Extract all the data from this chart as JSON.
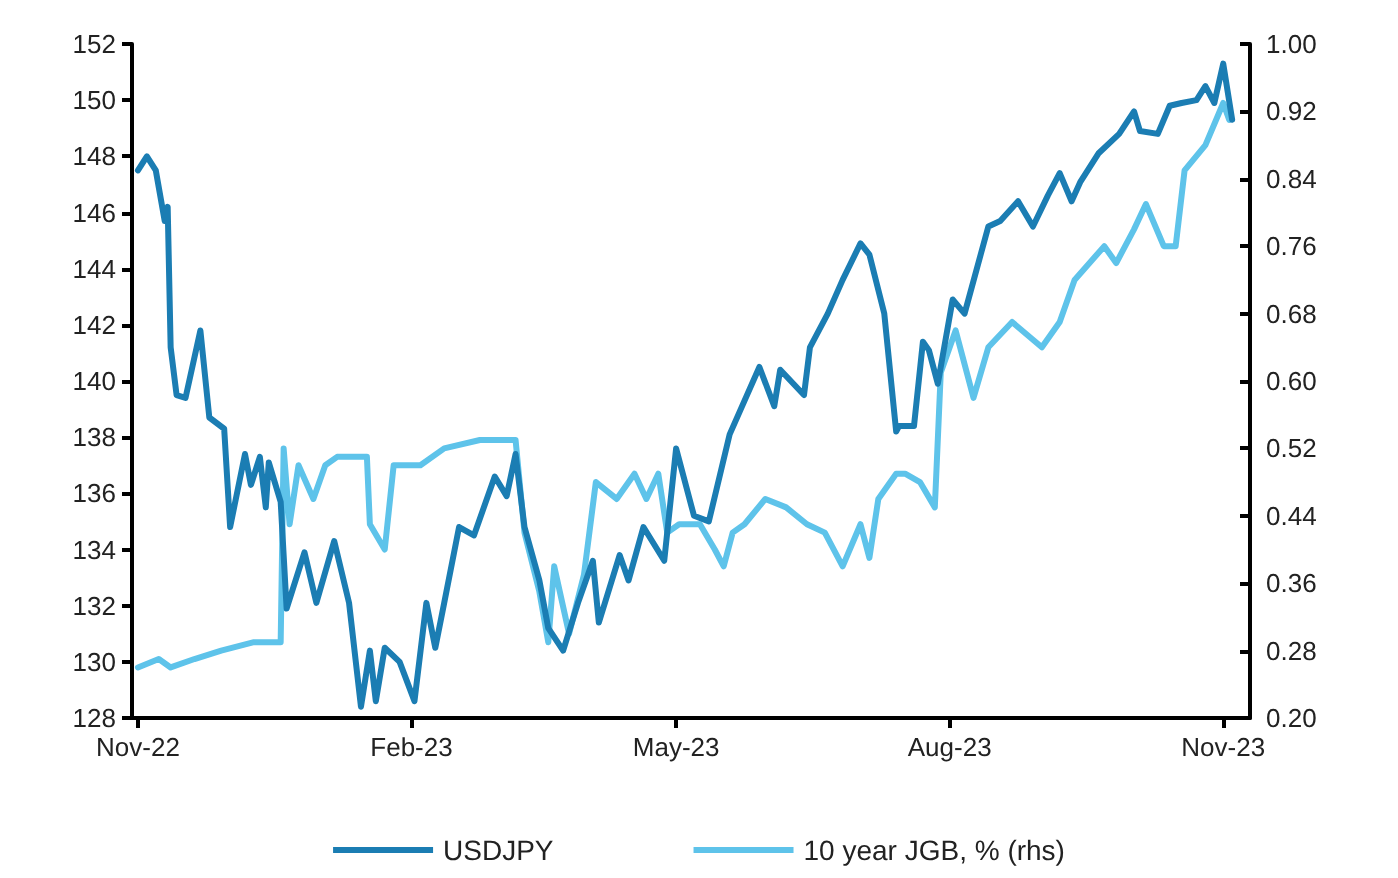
{
  "chart_data": {
    "type": "line",
    "legend": "bottom",
    "grid": false,
    "marker": "none",
    "line_style": "solid",
    "xlim": [
      "2022-10-30",
      "2023-11-10"
    ],
    "xticks": [
      {
        "value": "2022-11-01",
        "label": "Nov-22"
      },
      {
        "value": "2023-02-01",
        "label": "Feb-23"
      },
      {
        "value": "2023-05-01",
        "label": "May-23"
      },
      {
        "value": "2023-08-01",
        "label": "Aug-23"
      },
      {
        "value": "2023-11-01",
        "label": "Nov-23"
      }
    ],
    "ylim": [
      128,
      152
    ],
    "yticks": [
      128,
      130,
      132,
      134,
      136,
      138,
      140,
      142,
      144,
      146,
      148,
      150,
      152
    ],
    "y2lim": [
      0.2,
      1.0
    ],
    "y2ticks": [
      {
        "value": 0.2,
        "label": "0.20"
      },
      {
        "value": 0.28,
        "label": "0.28"
      },
      {
        "value": 0.36,
        "label": "0.36"
      },
      {
        "value": 0.44,
        "label": "0.44"
      },
      {
        "value": 0.52,
        "label": "0.52"
      },
      {
        "value": 0.6,
        "label": "0.60"
      },
      {
        "value": 0.68,
        "label": "0.68"
      },
      {
        "value": 0.76,
        "label": "0.76"
      },
      {
        "value": 0.84,
        "label": "0.84"
      },
      {
        "value": 0.92,
        "label": "0.92"
      },
      {
        "value": 1.0,
        "label": "1.00"
      }
    ],
    "series": [
      {
        "name": "USDJPY",
        "color": "#1b7db3",
        "x": [
          "2022-11-01",
          "2022-11-04",
          "2022-11-07",
          "2022-11-10",
          "2022-11-11",
          "2022-11-12",
          "2022-11-14",
          "2022-11-17",
          "2022-11-22",
          "2022-11-25",
          "2022-11-30",
          "2022-12-02",
          "2022-12-07",
          "2022-12-09",
          "2022-12-12",
          "2022-12-14",
          "2022-12-15",
          "2022-12-19",
          "2022-12-21",
          "2022-12-27",
          "2022-12-31",
          "2023-01-06",
          "2023-01-11",
          "2023-01-15",
          "2023-01-18",
          "2023-01-20",
          "2023-01-23",
          "2023-01-28",
          "2023-02-02",
          "2023-02-06",
          "2023-02-09",
          "2023-02-12",
          "2023-02-17",
          "2023-02-22",
          "2023-03-01",
          "2023-03-05",
          "2023-03-08",
          "2023-03-11",
          "2023-03-16",
          "2023-03-19",
          "2023-03-24",
          "2023-03-29",
          "2023-04-03",
          "2023-04-05",
          "2023-04-12",
          "2023-04-15",
          "2023-04-20",
          "2023-04-27",
          "2023-05-01",
          "2023-05-07",
          "2023-05-12",
          "2023-05-19",
          "2023-05-29",
          "2023-06-03",
          "2023-06-05",
          "2023-06-13",
          "2023-06-15",
          "2023-06-21",
          "2023-06-26",
          "2023-07-02",
          "2023-07-05",
          "2023-07-10",
          "2023-07-14",
          "2023-07-15",
          "2023-07-20",
          "2023-07-23",
          "2023-07-25",
          "2023-07-28",
          "2023-08-02",
          "2023-08-06",
          "2023-08-14",
          "2023-08-18",
          "2023-08-24",
          "2023-08-29",
          "2023-09-03",
          "2023-09-07",
          "2023-09-11",
          "2023-09-14",
          "2023-09-20",
          "2023-09-27",
          "2023-10-02",
          "2023-10-04",
          "2023-10-10",
          "2023-10-14",
          "2023-10-18",
          "2023-10-23",
          "2023-10-26",
          "2023-10-29",
          "2023-11-01",
          "2023-11-04"
        ],
        "values": [
          147.5,
          148,
          147.5,
          145.7,
          146.2,
          141.2,
          139.5,
          139.4,
          141.8,
          138.7,
          138.3,
          134.8,
          137.4,
          136.3,
          137.3,
          135.5,
          137.1,
          135.7,
          131.9,
          133.9,
          132.1,
          134.3,
          132.1,
          128.4,
          130.4,
          128.6,
          130.5,
          130,
          128.6,
          132.1,
          130.5,
          132.1,
          134.8,
          134.5,
          136.6,
          135.9,
          137.4,
          134.8,
          132.9,
          131.2,
          130.4,
          132.1,
          133.6,
          131.4,
          133.8,
          132.9,
          134.8,
          133.6,
          137.6,
          135.2,
          135,
          138.1,
          140.5,
          139.1,
          140.4,
          139.5,
          141.2,
          142.4,
          143.6,
          144.9,
          144.5,
          142.4,
          138.2,
          138.4,
          138.4,
          141.4,
          141.1,
          139.9,
          142.9,
          142.4,
          145.5,
          145.7,
          146.4,
          145.5,
          146.6,
          147.4,
          146.4,
          147.1,
          148.1,
          148.8,
          149.6,
          148.9,
          148.8,
          149.8,
          149.9,
          150,
          150.5,
          149.9,
          151.3,
          149.3
        ]
      },
      {
        "name": "10 year JGB, % (rhs)",
        "color": "#5ec3ea",
        "axis": "y2",
        "x": [
          "2022-11-01",
          "2022-11-08",
          "2022-11-12",
          "2022-11-20",
          "2022-11-29",
          "2022-12-10",
          "2022-12-19",
          "2022-12-20",
          "2022-12-22",
          "2022-12-25",
          "2022-12-30",
          "2023-01-03",
          "2023-01-07",
          "2023-01-17",
          "2023-01-18",
          "2023-01-23",
          "2023-01-26",
          "2023-02-04",
          "2023-02-12",
          "2023-02-24",
          "2023-03-08",
          "2023-03-11",
          "2023-03-16",
          "2023-03-19",
          "2023-03-21",
          "2023-03-26",
          "2023-03-31",
          "2023-04-04",
          "2023-04-11",
          "2023-04-17",
          "2023-04-21",
          "2023-04-25",
          "2023-04-28",
          "2023-05-02",
          "2023-05-09",
          "2023-05-14",
          "2023-05-17",
          "2023-05-20",
          "2023-05-24",
          "2023-05-31",
          "2023-06-07",
          "2023-06-14",
          "2023-06-20",
          "2023-06-26",
          "2023-07-02",
          "2023-07-05",
          "2023-07-08",
          "2023-07-14",
          "2023-07-17",
          "2023-07-22",
          "2023-07-27",
          "2023-07-29",
          "2023-08-03",
          "2023-08-09",
          "2023-08-14",
          "2023-08-22",
          "2023-09-01",
          "2023-09-07",
          "2023-09-12",
          "2023-09-22",
          "2023-09-26",
          "2023-10-02",
          "2023-10-06",
          "2023-10-12",
          "2023-10-16",
          "2023-10-19",
          "2023-10-26",
          "2023-11-01",
          "2023-11-03"
        ],
        "values": [
          0.26,
          0.27,
          0.26,
          0.27,
          0.28,
          0.29,
          0.29,
          0.52,
          0.43,
          0.5,
          0.46,
          0.5,
          0.51,
          0.51,
          0.43,
          0.4,
          0.5,
          0.5,
          0.52,
          0.53,
          0.53,
          0.42,
          0.35,
          0.29,
          0.38,
          0.3,
          0.37,
          0.48,
          0.46,
          0.49,
          0.46,
          0.49,
          0.42,
          0.43,
          0.43,
          0.4,
          0.38,
          0.42,
          0.43,
          0.46,
          0.45,
          0.43,
          0.42,
          0.38,
          0.43,
          0.39,
          0.46,
          0.49,
          0.49,
          0.48,
          0.45,
          0.61,
          0.66,
          0.58,
          0.64,
          0.67,
          0.64,
          0.67,
          0.72,
          0.76,
          0.74,
          0.78,
          0.81,
          0.76,
          0.76,
          0.85,
          0.88,
          0.93,
          0.91
        ]
      }
    ]
  }
}
